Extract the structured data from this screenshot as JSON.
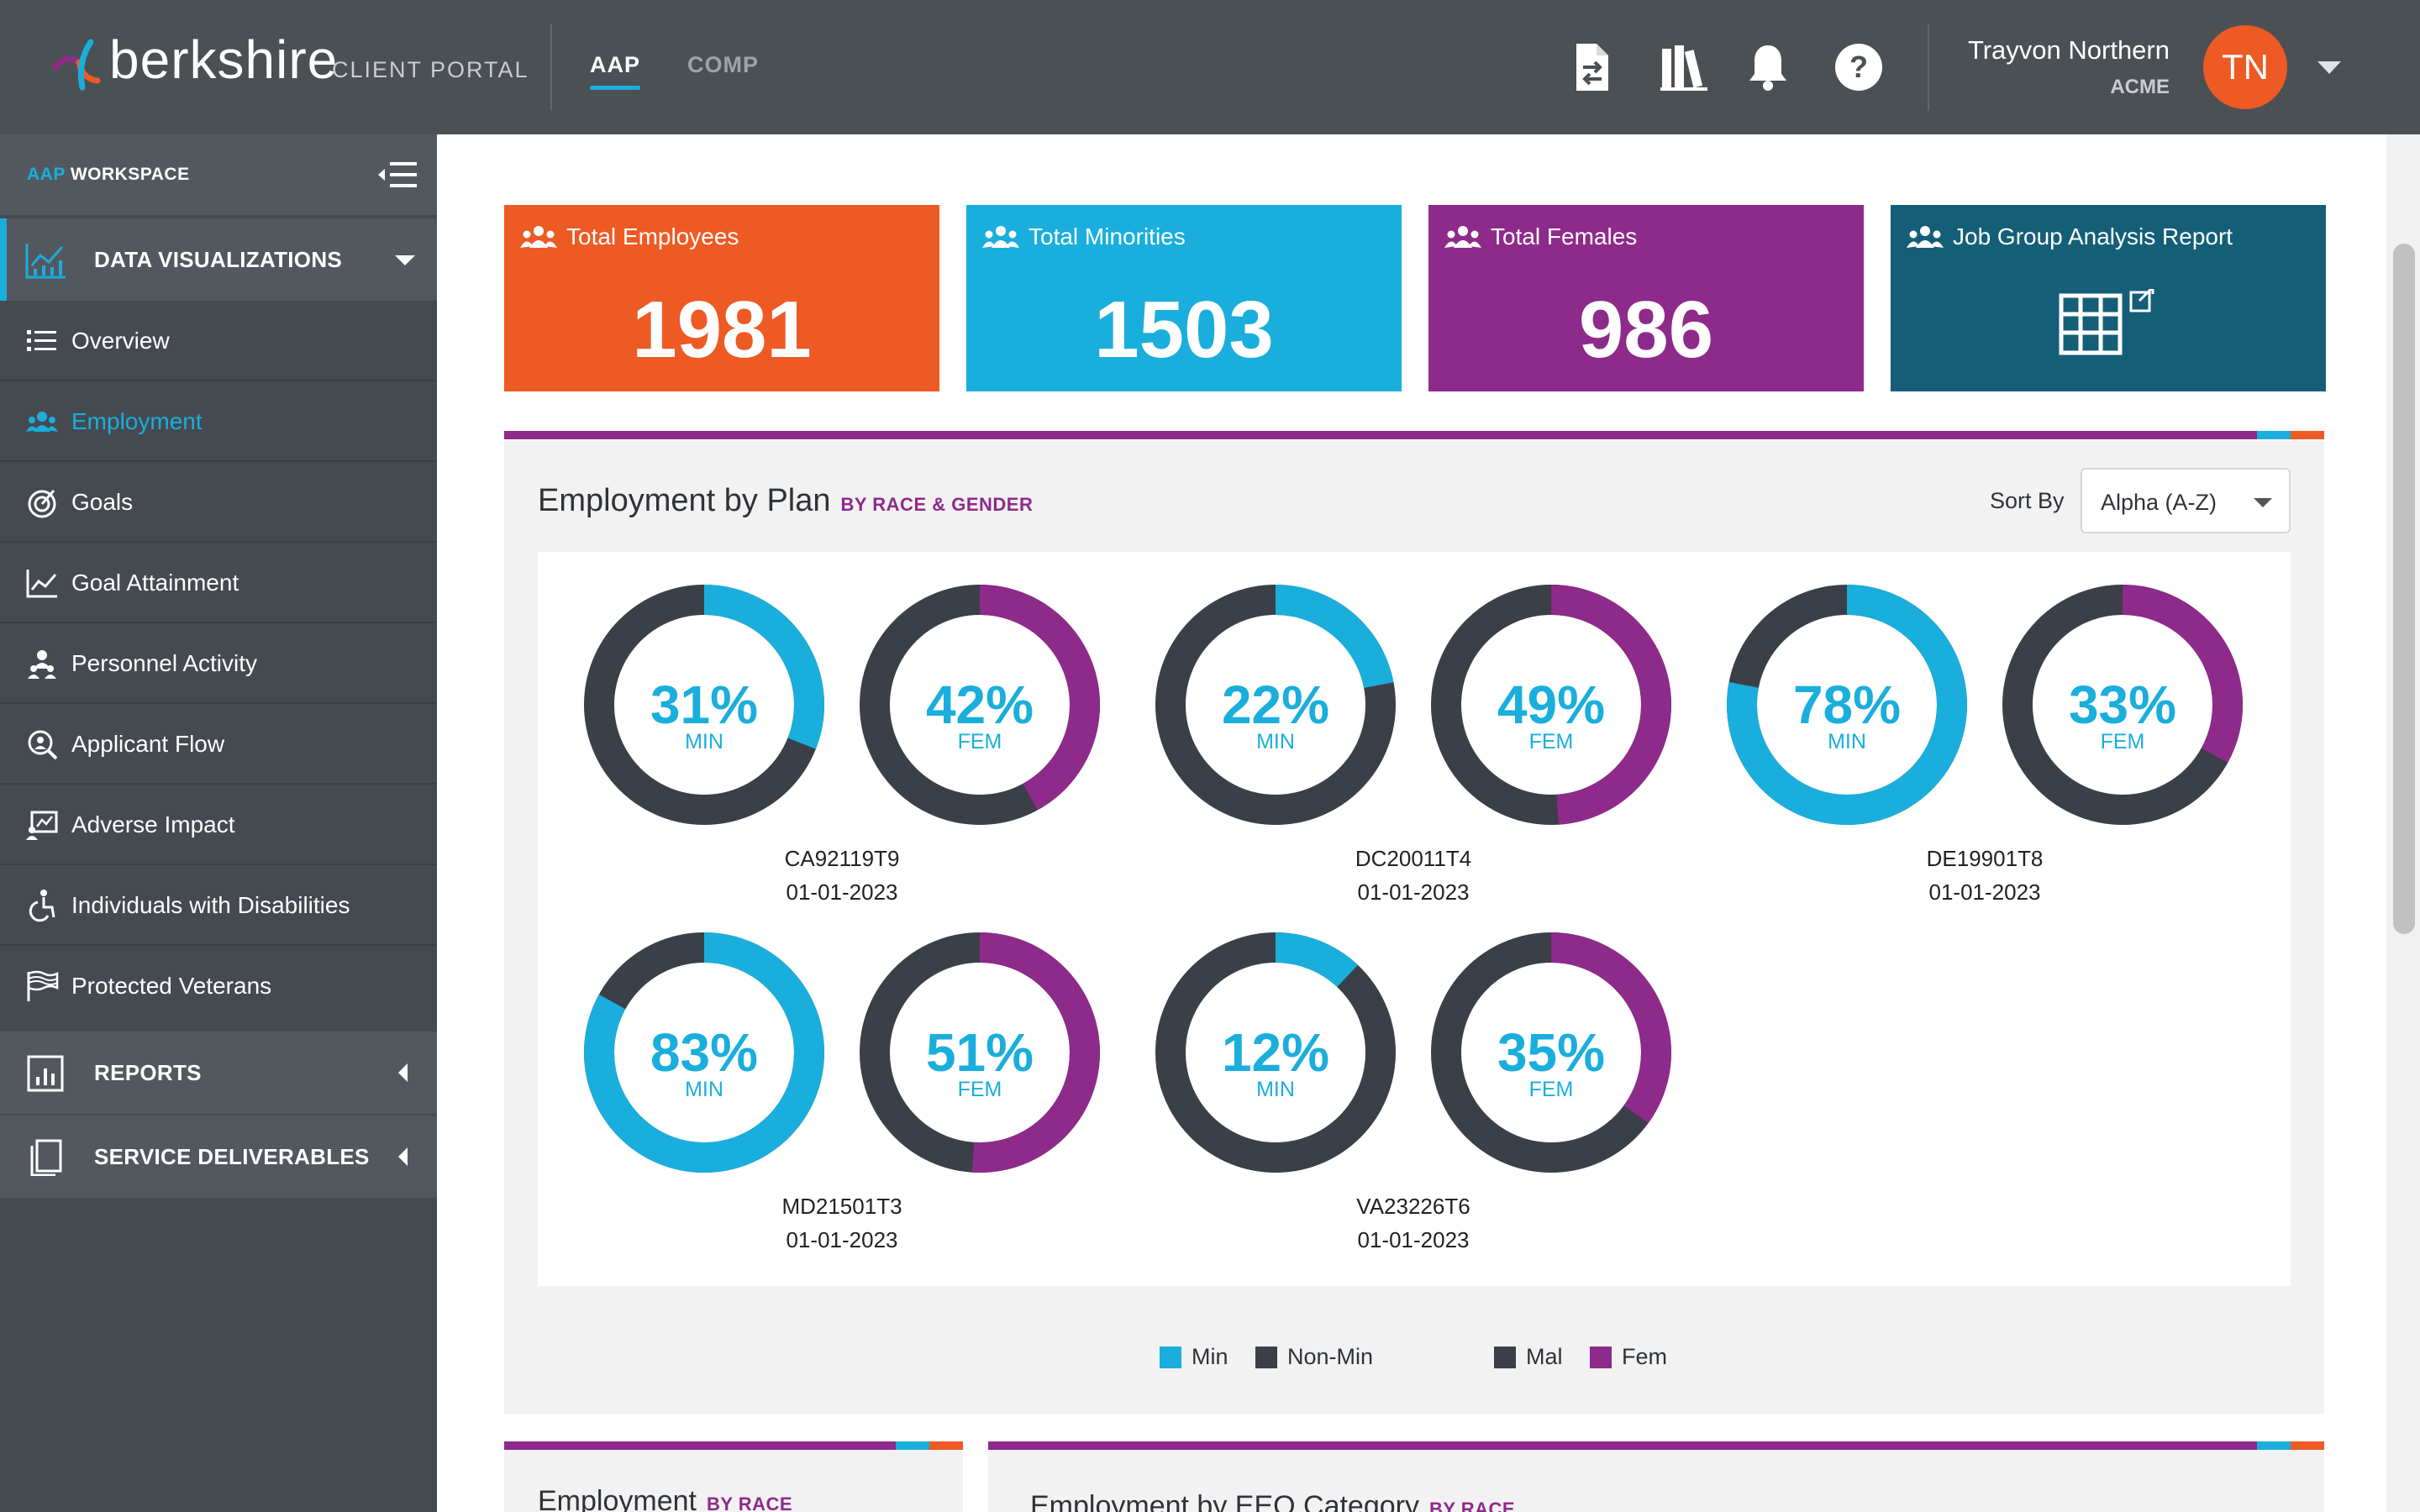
{
  "header": {
    "logo_text": "berkshire",
    "portal_label": "CLIENT PORTAL",
    "tabs": [
      {
        "label": "AAP",
        "active": true
      },
      {
        "label": "COMP",
        "active": false
      }
    ],
    "icons": [
      "document-transfer-icon",
      "library-icon",
      "bell-icon",
      "help-icon"
    ],
    "user": {
      "name": "Trayvon Northern",
      "org": "ACME",
      "initials": "TN"
    }
  },
  "sidebar": {
    "workspace_prefix": "AAP",
    "workspace_label": "WORKSPACE",
    "groups": [
      {
        "label": "DATA VISUALIZATIONS",
        "expanded": true
      },
      {
        "label": "REPORTS",
        "expanded": false
      },
      {
        "label": "SERVICE DELIVERABLES",
        "expanded": false
      }
    ],
    "items": [
      {
        "label": "Overview",
        "icon": "list-icon",
        "active": false
      },
      {
        "label": "Employment",
        "icon": "people-icon",
        "active": true
      },
      {
        "label": "Goals",
        "icon": "target-icon",
        "active": false
      },
      {
        "label": "Goal Attainment",
        "icon": "line-chart-icon",
        "active": false
      },
      {
        "label": "Personnel Activity",
        "icon": "personnel-icon",
        "active": false
      },
      {
        "label": "Applicant Flow",
        "icon": "search-person-icon",
        "active": false
      },
      {
        "label": "Adverse Impact",
        "icon": "adverse-impact-icon",
        "active": false
      },
      {
        "label": "Individuals with Disabilities",
        "icon": "accessibility-icon",
        "active": false
      },
      {
        "label": "Protected Veterans",
        "icon": "flag-icon",
        "active": false
      }
    ]
  },
  "stats": [
    {
      "label": "Total Employees",
      "value": "1981",
      "color": "#ee5a24"
    },
    {
      "label": "Total Minorities",
      "value": "1503",
      "color": "#1aaedc"
    },
    {
      "label": "Total Females",
      "value": "986",
      "color": "#8e2a8a"
    },
    {
      "label": "Job Group Analysis Report",
      "value": "",
      "color": "#155e78"
    }
  ],
  "employment_panel": {
    "title": "Employment by Plan",
    "subtitle": "BY RACE & GENDER",
    "sort_label": "Sort By",
    "sort_value": "Alpha (A-Z)"
  },
  "colors": {
    "min": "#1aaedc",
    "nonmin": "#3a3f48",
    "fem": "#8e2a8a",
    "mal": "#3a3f48"
  },
  "chart_data": {
    "type": "pie",
    "variant": "donut",
    "plans": [
      {
        "plan": "CA92119T9",
        "date": "01-01-2023",
        "min_pct": 31,
        "fem_pct": 42
      },
      {
        "plan": "DC20011T4",
        "date": "01-01-2023",
        "min_pct": 22,
        "fem_pct": 49
      },
      {
        "plan": "DE19901T8",
        "date": "01-01-2023",
        "min_pct": 78,
        "fem_pct": 33
      },
      {
        "plan": "MD21501T3",
        "date": "01-01-2023",
        "min_pct": 83,
        "fem_pct": 51
      },
      {
        "plan": "VA23226T6",
        "date": "01-01-2023",
        "min_pct": 12,
        "fem_pct": 35
      }
    ],
    "min_label": "MIN",
    "fem_label": "FEM",
    "legend": [
      {
        "label": "Min",
        "color": "#1aaedc"
      },
      {
        "label": "Non-Min",
        "color": "#3a3f48"
      },
      {
        "label": "Mal",
        "color": "#3a3f48"
      },
      {
        "label": "Fem",
        "color": "#8e2a8a"
      }
    ]
  },
  "lower_panels": [
    {
      "title": "Employment",
      "subtitle": "BY RACE"
    },
    {
      "title": "Employment by EEO Category",
      "subtitle": "BY RACE"
    }
  ]
}
